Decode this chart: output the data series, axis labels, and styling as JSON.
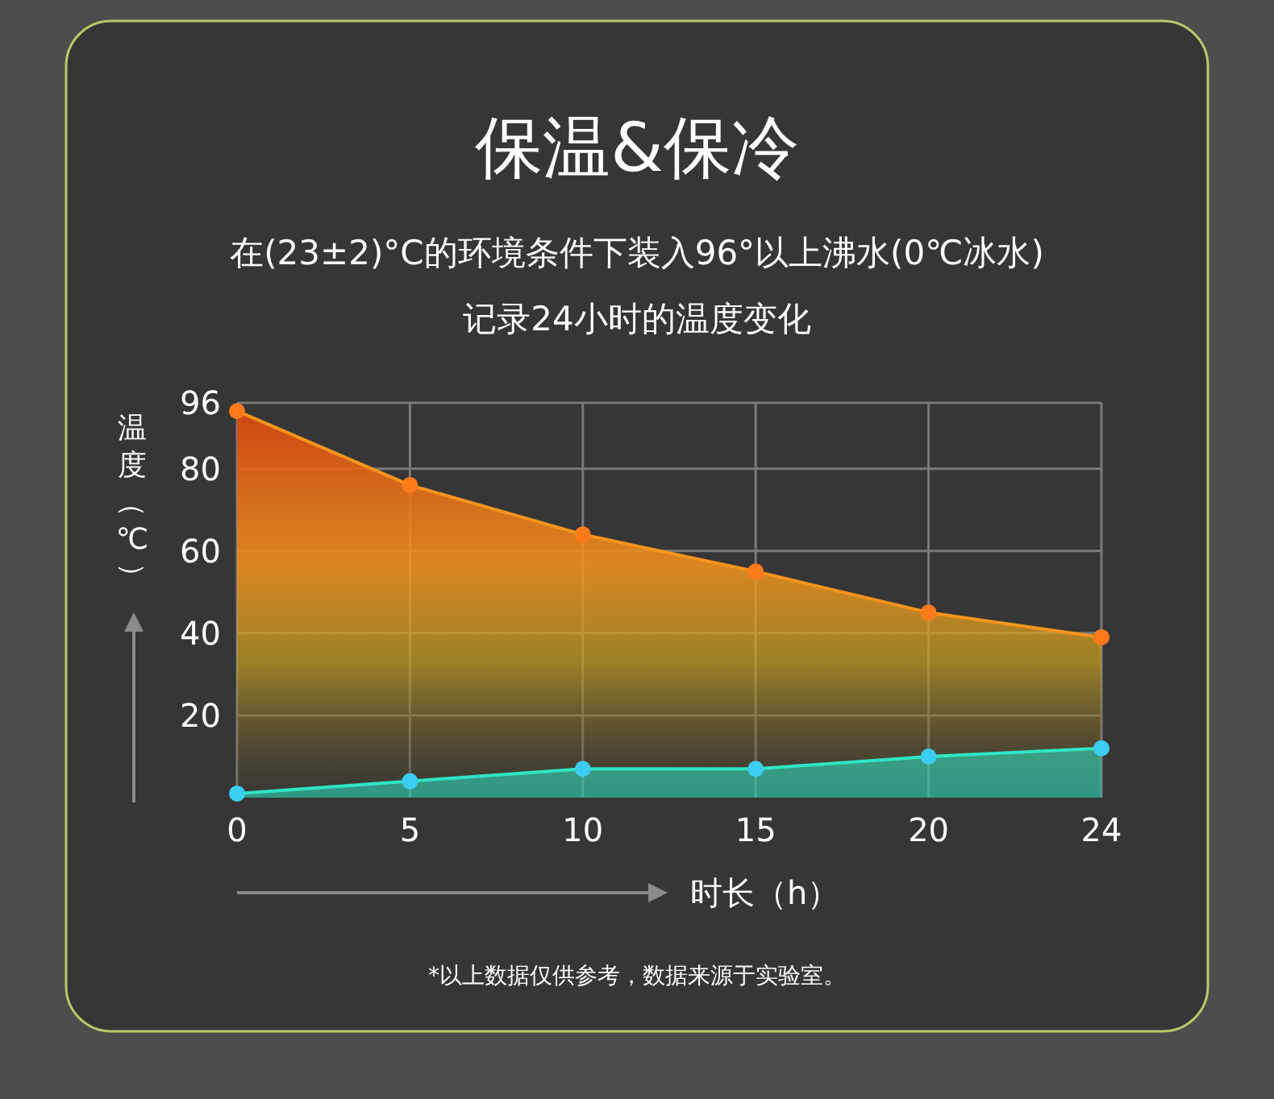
{
  "chart_data": {
    "type": "area",
    "title": "保温&保冷",
    "subtitle": "在(23±2)°C的环境条件下装入96°以上沸水(0℃冰水)\n记录24小时的温度变化",
    "xlabel": "时长（h）",
    "ylabel": "温度（℃）",
    "categories": [
      "0",
      "5",
      "10",
      "15",
      "20",
      "24"
    ],
    "series": [
      {
        "color": "#f7941d",
        "values": [
          94,
          76,
          64,
          55,
          45,
          39
        ]
      },
      {
        "color": "#2ee6c4",
        "values": [
          1,
          4,
          7,
          7,
          10,
          12
        ]
      }
    ],
    "ylim": [
      0,
      96
    ],
    "yticks": [
      20,
      40,
      60,
      80,
      96
    ],
    "grid": true,
    "marker": "circle",
    "line_style": "solid",
    "annotations": [
      "*以上数据仅供参考，数据来源于实验室。"
    ]
  }
}
